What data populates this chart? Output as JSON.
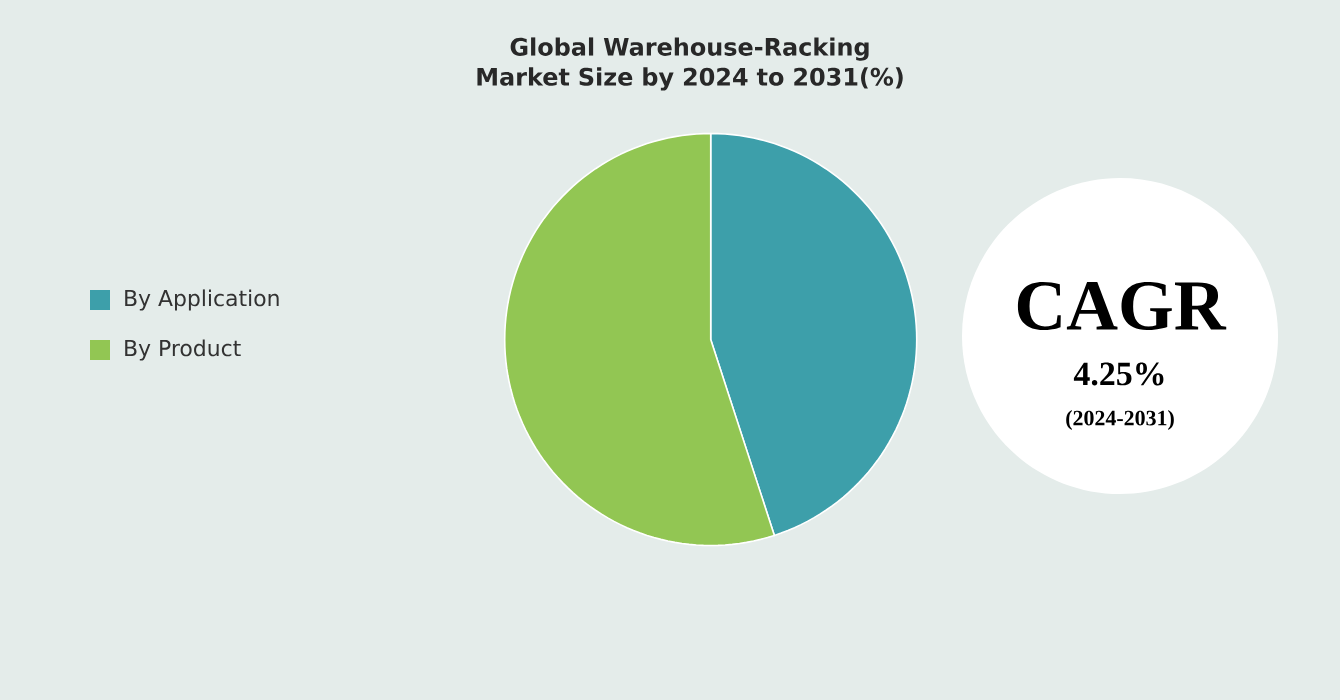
{
  "chart_data": {
    "type": "pie",
    "title": "Global Warehouse-Racking Market Size by 2024 to 2031(%)",
    "categories": [
      "By Application",
      "By Product"
    ],
    "values": [
      45,
      55
    ],
    "colors": [
      "#3d9faa",
      "#92c653"
    ],
    "legend": "left",
    "annotations": [
      "CAGR",
      "4.25%",
      "(2024-2031)"
    ]
  }
}
